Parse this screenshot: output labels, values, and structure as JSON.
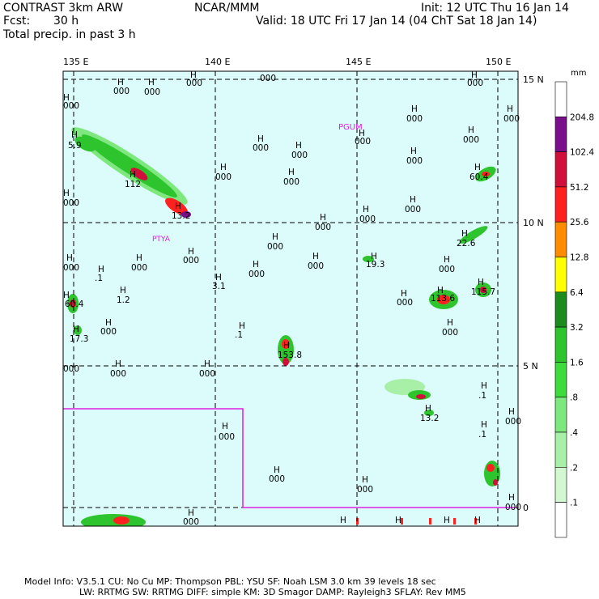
{
  "header": {
    "model": "CONTRAST  3km ARW",
    "org": "NCAR/MMM",
    "init": "Init: 12 UTC Thu 16 Jan 14",
    "fcst_label": "Fcst:",
    "fcst_value": "30 h",
    "valid": "Valid: 18 UTC Fri 17 Jan 14 (04 ChT Sat 18 Jan 14)",
    "field": "Total precip. in past 3 h"
  },
  "axes": {
    "lon_labels": [
      "135 E",
      "140 E",
      "145 E",
      "150 E"
    ],
    "lat_labels": [
      "15 N",
      "10 N",
      "5 N",
      "0"
    ]
  },
  "colorbar": {
    "unit": "mm",
    "levels": [
      "204.8",
      "102.4",
      "51.2",
      "25.6",
      "12.8",
      "6.4",
      "3.2",
      "1.6",
      ".8",
      ".4",
      ".2",
      ".1"
    ],
    "colors": [
      "#ffffff",
      "#7a0f8c",
      "#d0103a",
      "#ff2020",
      "#ff8c00",
      "#ffff00",
      "#1c8c1c",
      "#2ec42e",
      "#3cdc3c",
      "#7ee87e",
      "#a8f0a8",
      "#d2f8d2",
      "#ffffff"
    ]
  },
  "stations": [
    "PGUM",
    "PTYA"
  ],
  "labels": {
    "h": "H",
    "values": [
      "000",
      "000",
      "000",
      "000",
      "000",
      "000",
      "000",
      "000",
      "000",
      "000",
      "000",
      "000",
      "000",
      "000",
      "000",
      "000",
      "000",
      "000",
      "000",
      "000",
      "000",
      "000",
      "000",
      "000",
      "000",
      "000",
      "000",
      "000",
      "000",
      "000",
      "000",
      "000",
      "000",
      "000",
      "000",
      "000",
      "000",
      "000",
      "5.9",
      "112",
      "13.2",
      "60.4",
      "22.6",
      "19.3",
      "113.6",
      "115.7",
      "1.2",
      ".1",
      "3.1",
      ".1",
      "153.8",
      "17.3",
      "60.4",
      "13.2",
      ".1",
      ".1"
    ]
  },
  "footer": {
    "line1": "Model Info: V3.5.1    CU: No Cu    MP: Thompson    PBL: YSU       SF: Noah LSM     3.0 km   39 levels    18 sec",
    "line2": "LW: RRTMG     SW: RRTMG   DIFF: simple KM: 3D Smagor DAMP: Rayleigh3  SFLAY: Rev MM5"
  }
}
